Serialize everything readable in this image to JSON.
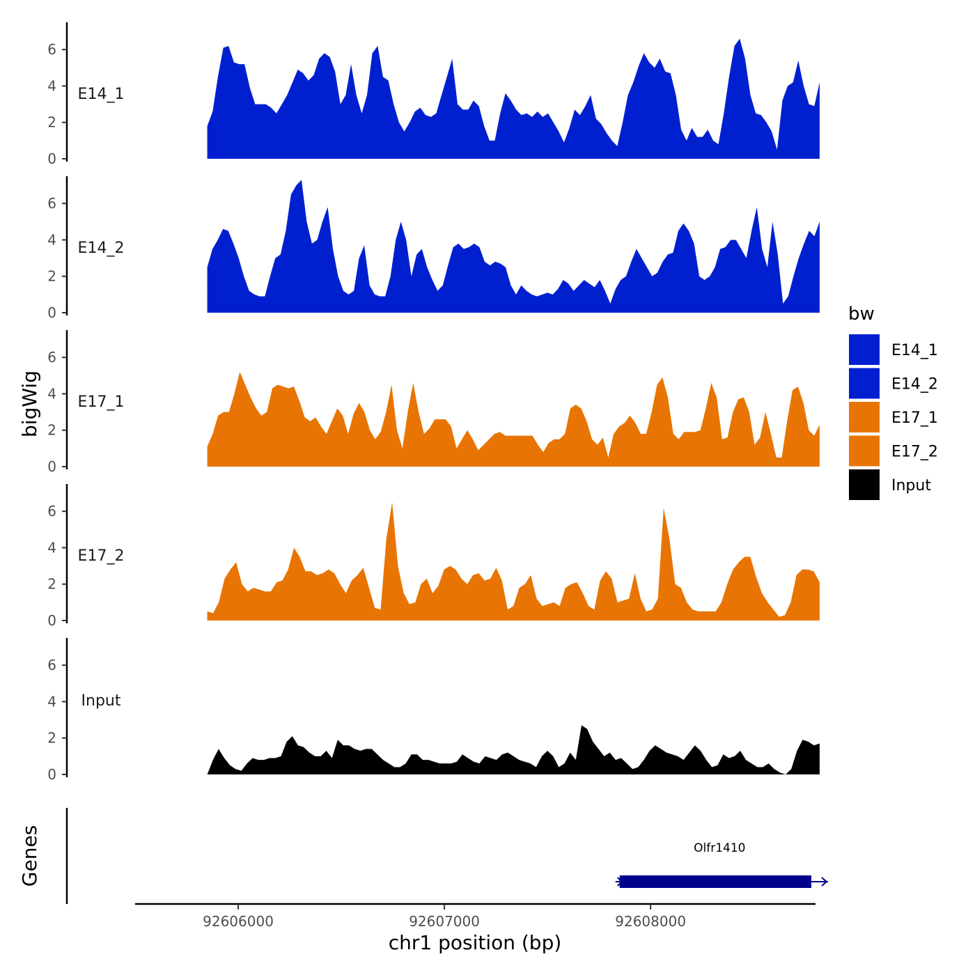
{
  "chart_data": {
    "type": "area",
    "y_axis_title": "bigWig",
    "x_axis_title": "chr1 position (bp)",
    "genes_axis_title": "Genes",
    "xlim": [
      92605500,
      92608800
    ],
    "x_domain_data": [
      92605850,
      92608820
    ],
    "ylim": [
      0,
      7.5
    ],
    "y_ticks": [
      0,
      2,
      4,
      6
    ],
    "x_ticks": [
      92606000,
      92607000,
      92608000
    ],
    "x_tick_labels": [
      "92606000",
      "92607000",
      "92608000"
    ],
    "legend": {
      "title": "bw",
      "entries": [
        {
          "name": "E14_1",
          "color": "#0020d0"
        },
        {
          "name": "E14_2",
          "color": "#0020d0"
        },
        {
          "name": "E17_1",
          "color": "#e87503"
        },
        {
          "name": "E17_2",
          "color": "#e87503"
        },
        {
          "name": "Input",
          "color": "#000000"
        }
      ]
    },
    "series": [
      {
        "name": "E14_1",
        "color": "#0020d0",
        "values": [
          1.8,
          2.6,
          4.5,
          6.1,
          6.2,
          5.3,
          5.2,
          5.2,
          3.9,
          3.0,
          3.0,
          3.0,
          2.8,
          2.5,
          3.0,
          3.5,
          4.2,
          4.9,
          4.7,
          4.3,
          4.6,
          5.5,
          5.8,
          5.6,
          4.8,
          3.0,
          3.5,
          5.2,
          3.5,
          2.5,
          3.5,
          5.8,
          6.2,
          4.5,
          4.3,
          3.0,
          2.0,
          1.5,
          2.0,
          2.6,
          2.8,
          2.4,
          2.3,
          2.5,
          3.5,
          4.5,
          5.5,
          3.0,
          2.7,
          2.7,
          3.2,
          2.9,
          1.8,
          1.0,
          1.0,
          2.5,
          3.6,
          3.2,
          2.7,
          2.4,
          2.5,
          2.3,
          2.6,
          2.3,
          2.5,
          2.0,
          1.5,
          0.9,
          1.7,
          2.7,
          2.4,
          2.9,
          3.5,
          2.2,
          1.9,
          1.4,
          1.0,
          0.7,
          2.0,
          3.5,
          4.2,
          5.1,
          5.8,
          5.3,
          5.0,
          5.5,
          4.8,
          4.7,
          3.5,
          1.6,
          1.0,
          1.7,
          1.2,
          1.2,
          1.6,
          1.0,
          0.8,
          2.5,
          4.5,
          6.2,
          6.6,
          5.5,
          3.5,
          2.5,
          2.4,
          2.0,
          1.5,
          0.5,
          3.2,
          4.0,
          4.2,
          5.4,
          4.0,
          3.0,
          2.9,
          4.2
        ]
      },
      {
        "name": "E14_2",
        "color": "#0020d0",
        "values": [
          2.5,
          3.5,
          4.0,
          4.6,
          4.5,
          3.8,
          3.0,
          2.0,
          1.2,
          1.0,
          0.9,
          0.9,
          2.0,
          3.0,
          3.2,
          4.5,
          6.5,
          7.0,
          7.3,
          5.0,
          3.8,
          4.0,
          5.0,
          5.8,
          3.5,
          2.0,
          1.2,
          1.0,
          1.2,
          3.0,
          3.7,
          1.5,
          1.0,
          0.9,
          0.9,
          2.0,
          4.0,
          5.0,
          4.0,
          2.0,
          3.2,
          3.5,
          2.5,
          1.8,
          1.2,
          1.5,
          2.6,
          3.6,
          3.8,
          3.5,
          3.6,
          3.8,
          3.6,
          2.8,
          2.6,
          2.8,
          2.7,
          2.5,
          1.5,
          1.0,
          1.5,
          1.2,
          1.0,
          0.9,
          1.0,
          1.1,
          1.0,
          1.3,
          1.8,
          1.6,
          1.2,
          1.5,
          1.8,
          1.6,
          1.4,
          1.8,
          1.2,
          0.5,
          1.3,
          1.8,
          2.0,
          2.8,
          3.5,
          3.0,
          2.5,
          2.0,
          2.2,
          2.8,
          3.2,
          3.3,
          4.5,
          4.9,
          4.5,
          3.8,
          2.0,
          1.8,
          2.0,
          2.5,
          3.5,
          3.6,
          4.0,
          4.0,
          3.5,
          3.0,
          4.5,
          5.8,
          3.5,
          2.5,
          5.0,
          3.2,
          0.5,
          0.9,
          2.0,
          3.0,
          3.8,
          4.5,
          4.2,
          5.0
        ]
      },
      {
        "name": "E17_1",
        "color": "#e87503",
        "values": [
          1.1,
          1.8,
          2.8,
          3.0,
          3.0,
          4.0,
          5.2,
          4.5,
          3.8,
          3.2,
          2.8,
          3.0,
          4.3,
          4.5,
          4.4,
          4.3,
          4.4,
          3.6,
          2.7,
          2.5,
          2.7,
          2.2,
          1.8,
          2.5,
          3.2,
          2.8,
          1.8,
          2.9,
          3.5,
          3.0,
          2.0,
          1.5,
          1.9,
          3.0,
          4.5,
          2.0,
          1.0,
          3.0,
          4.6,
          3.0,
          1.8,
          2.1,
          2.6,
          2.6,
          2.6,
          2.2,
          1.0,
          1.5,
          2.0,
          1.5,
          0.9,
          1.2,
          1.5,
          1.8,
          1.9,
          1.7,
          1.7,
          1.7,
          1.7,
          1.7,
          1.7,
          1.2,
          0.8,
          1.3,
          1.5,
          1.5,
          1.8,
          3.2,
          3.4,
          3.2,
          2.5,
          1.5,
          1.2,
          1.6,
          0.5,
          1.8,
          2.2,
          2.4,
          2.8,
          2.4,
          1.8,
          1.8,
          3.0,
          4.5,
          4.9,
          3.8,
          1.8,
          1.5,
          1.9,
          1.9,
          1.9,
          2.0,
          3.2,
          4.6,
          3.8,
          1.5,
          1.6,
          3.0,
          3.7,
          3.8,
          3.0,
          1.2,
          1.6,
          3.0,
          1.8,
          0.5,
          0.5,
          2.5,
          4.2,
          4.4,
          3.5,
          2.0,
          1.7,
          2.3
        ]
      },
      {
        "name": "E17_2",
        "color": "#e87503",
        "values": [
          0.5,
          0.4,
          1.0,
          2.3,
          2.8,
          3.2,
          2.0,
          1.6,
          1.8,
          1.7,
          1.6,
          1.6,
          2.1,
          2.2,
          2.8,
          4.0,
          3.5,
          2.7,
          2.7,
          2.5,
          2.6,
          2.8,
          2.6,
          2.0,
          1.5,
          2.2,
          2.5,
          2.9,
          1.8,
          0.7,
          0.6,
          4.5,
          6.5,
          3.0,
          1.5,
          0.9,
          1.0,
          2.0,
          2.3,
          1.5,
          1.9,
          2.8,
          3.0,
          2.8,
          2.3,
          2.0,
          2.5,
          2.6,
          2.2,
          2.3,
          2.9,
          2.2,
          0.6,
          0.8,
          1.8,
          2.0,
          2.5,
          1.2,
          0.8,
          0.9,
          1.0,
          0.8,
          1.8,
          2.0,
          2.1,
          1.5,
          0.8,
          0.6,
          2.2,
          2.7,
          2.3,
          1.0,
          1.1,
          1.2,
          2.6,
          1.2,
          0.5,
          0.6,
          1.2,
          6.2,
          4.5,
          2.0,
          1.8,
          1.0,
          0.6,
          0.5,
          0.5,
          0.5,
          0.5,
          1.0,
          2.0,
          2.8,
          3.2,
          3.5,
          3.5,
          2.4,
          1.5,
          1.0,
          0.6,
          0.2,
          0.3,
          1.0,
          2.5,
          2.8,
          2.8,
          2.7,
          2.1
        ]
      },
      {
        "name": "Input",
        "color": "#000000",
        "values": [
          0.0,
          0.8,
          1.4,
          0.9,
          0.5,
          0.3,
          0.2,
          0.6,
          0.9,
          0.8,
          0.8,
          0.9,
          0.9,
          1.0,
          1.8,
          2.1,
          1.6,
          1.5,
          1.2,
          1.0,
          1.0,
          1.3,
          0.9,
          1.9,
          1.6,
          1.6,
          1.4,
          1.3,
          1.4,
          1.4,
          1.1,
          0.8,
          0.6,
          0.4,
          0.4,
          0.6,
          1.1,
          1.1,
          0.8,
          0.8,
          0.7,
          0.6,
          0.6,
          0.6,
          0.7,
          1.1,
          0.9,
          0.7,
          0.6,
          1.0,
          0.9,
          0.8,
          1.1,
          1.2,
          1.0,
          0.8,
          0.7,
          0.6,
          0.4,
          1.0,
          1.3,
          1.0,
          0.4,
          0.6,
          1.2,
          0.8,
          2.7,
          2.5,
          1.8,
          1.4,
          1.0,
          1.2,
          0.8,
          0.9,
          0.6,
          0.3,
          0.4,
          0.8,
          1.3,
          1.6,
          1.4,
          1.2,
          1.1,
          1.0,
          0.8,
          1.2,
          1.6,
          1.3,
          0.8,
          0.4,
          0.5,
          1.1,
          0.9,
          1.0,
          1.3,
          0.8,
          0.6,
          0.4,
          0.4,
          0.6,
          0.3,
          0.1,
          0.0,
          0.3,
          1.3,
          1.9,
          1.8,
          1.6,
          1.7
        ]
      }
    ],
    "genes": [
      {
        "name": "Olfr1410",
        "start": 92607850,
        "end": 92608820,
        "strand": "+",
        "color": "#00008b"
      }
    ]
  }
}
